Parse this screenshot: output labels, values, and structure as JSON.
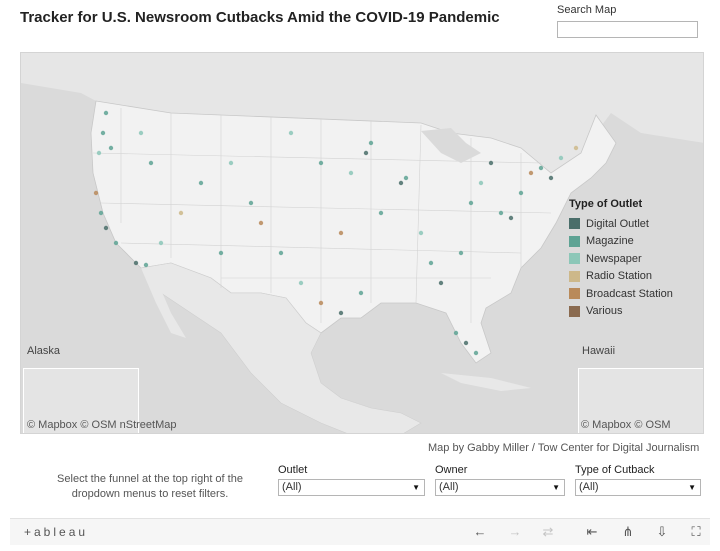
{
  "title": "Tracker for U.S. Newsroom Cutbacks Amid the COVID-19 Pandemic",
  "search": {
    "label": "Search Map",
    "placeholder": ""
  },
  "map": {
    "insets": {
      "alaska": "Alaska",
      "hawaii": "Hawaii"
    },
    "attribution_left": "© Mapbox  © OSM      nStreetMap",
    "attribution_right": "© Mapbox  © OSM"
  },
  "legend": {
    "title": "Type of Outlet",
    "items": [
      {
        "label": "Digital Outlet",
        "color": "#4a6e6a"
      },
      {
        "label": "Magazine",
        "color": "#5ea394"
      },
      {
        "label": "Newspaper",
        "color": "#8cc7b8"
      },
      {
        "label": "Radio Station",
        "color": "#cdb88a"
      },
      {
        "label": "Broadcast Station",
        "color": "#b98a5a"
      },
      {
        "label": "Various",
        "color": "#8a6a4f"
      }
    ]
  },
  "credit": "Map by Gabby Miller / Tow Center for Digital Journalism",
  "hint": "Select the funnel at the top right of the dropdown menus to reset filters.",
  "filters": [
    {
      "label": "Outlet",
      "value": "(All)"
    },
    {
      "label": "Owner",
      "value": "(All)"
    },
    {
      "label": "Type of Cutback",
      "value": "(All)"
    }
  ],
  "toolbar": {
    "logo": "+ableau",
    "icons": [
      "undo-icon",
      "redo-icon",
      "revert-icon",
      "reset-icon",
      "share-icon",
      "download-icon",
      "fullscreen-icon"
    ]
  }
}
